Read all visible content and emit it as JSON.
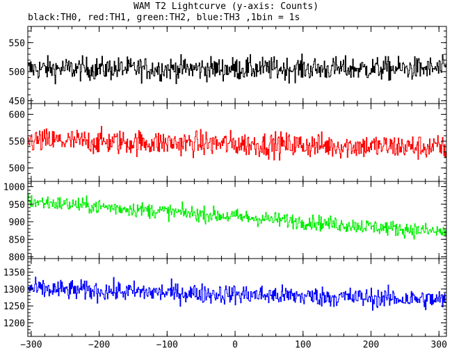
{
  "chart_data": {
    "type": "line",
    "title": "WAM T2 Lightcurve (y-axis: Counts)",
    "subtitle": "black:TH0, red:TH1, green:TH2, blue:TH3 ,1bin = 1s",
    "xlabel": "",
    "ylabel": "Counts",
    "xlim": [
      -305,
      311
    ],
    "x_ticks": [
      -300,
      -200,
      -100,
      0,
      100,
      200,
      300
    ],
    "x_tick_labels": [
      "−300",
      "−200",
      "−100",
      "0",
      "100",
      "200",
      "300"
    ],
    "panels": [
      {
        "series_name": "TH0",
        "color": "#000000",
        "ylim": [
          445,
          578
        ],
        "y_ticks": [
          450,
          500,
          550
        ],
        "mean_start": 505,
        "mean_end": 505,
        "noise": 26
      },
      {
        "series_name": "TH1",
        "color": "#ff0000",
        "ylim": [
          475,
          620
        ],
        "y_ticks": [
          500,
          550,
          600
        ],
        "mean_start": 551,
        "mean_end": 538,
        "noise": 30
      },
      {
        "series_name": "TH2",
        "color": "#00ee00",
        "ylim": [
          795,
          1015
        ],
        "y_ticks": [
          800,
          850,
          900,
          950,
          1000
        ],
        "mean_start": 958,
        "mean_end": 870,
        "noise": 28
      },
      {
        "series_name": "TH3",
        "color": "#0000ff",
        "ylim": [
          1160,
          1390
        ],
        "y_ticks": [
          1200,
          1250,
          1300,
          1350
        ],
        "mean_start": 1300,
        "mean_end": 1268,
        "noise": 38
      }
    ]
  }
}
